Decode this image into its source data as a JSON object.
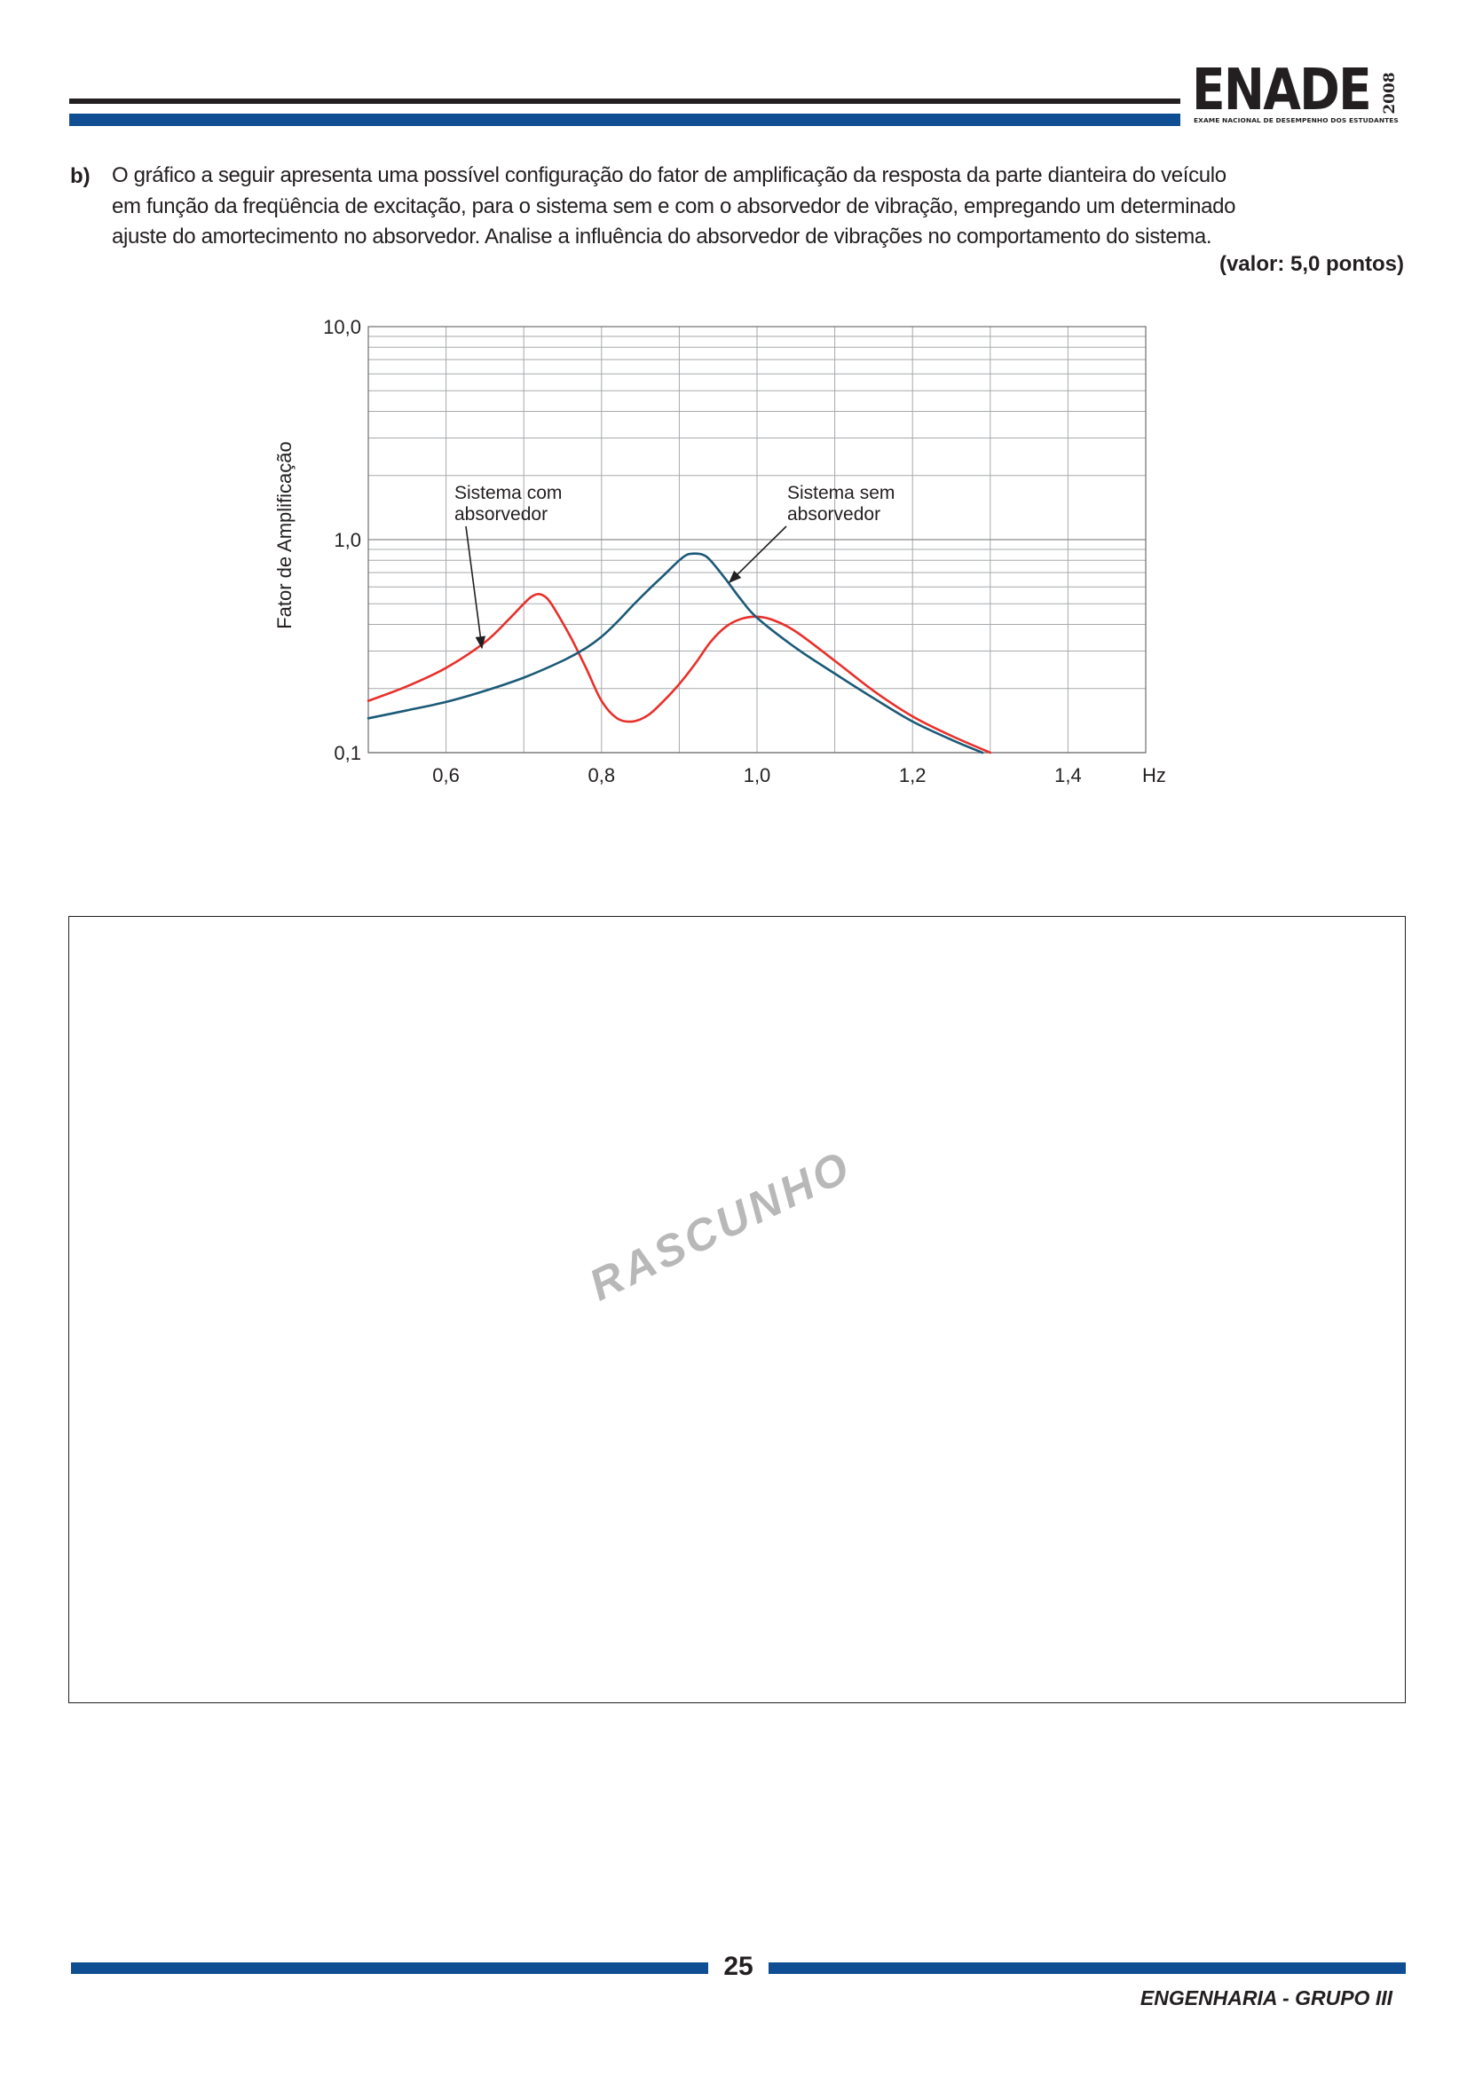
{
  "header": {
    "logo_text": "ENADE",
    "logo_year": "2008",
    "logo_subtitle": "EXAME NACIONAL DE DESEMPENHO DOS ESTUDANTES"
  },
  "question": {
    "marker": "b)",
    "lines": [
      "O gráfico a seguir apresenta uma possível configuração do fator de amplificação da resposta da parte dianteira do veículo",
      "em função da freqüência de excitação, para o sistema sem e com o absorvedor de vibração, empregando um determinado",
      "ajuste do amortecimento no absorvedor. Analise a influência do absorvedor de vibrações no comportamento do sistema."
    ],
    "value": "(valor: 5,0 pontos)"
  },
  "chart_data": {
    "type": "line",
    "title": "",
    "xlabel": "Hz",
    "ylabel": "Fator de Amplificação",
    "x_scale": "linear",
    "y_scale": "log",
    "xlim": [
      0.5,
      1.5
    ],
    "ylim": [
      0.1,
      10.0
    ],
    "grid": true,
    "x_ticks": [
      {
        "value": 0.6,
        "label": "0,6"
      },
      {
        "value": 0.8,
        "label": "0,8"
      },
      {
        "value": 1.0,
        "label": "1,0"
      },
      {
        "value": 1.2,
        "label": "1,2"
      },
      {
        "value": 1.4,
        "label": "1,4"
      }
    ],
    "y_ticks": [
      {
        "value": 0.1,
        "label": "0,1"
      },
      {
        "value": 1.0,
        "label": "1,0"
      },
      {
        "value": 10.0,
        "label": "10,0"
      }
    ],
    "annotations": [
      {
        "lines": [
          "Sistema com",
          "absorvedor"
        ],
        "series": 0
      },
      {
        "lines": [
          "Sistema sem",
          "absorvedor"
        ],
        "series": 1
      }
    ],
    "series": [
      {
        "name": "Sistema com absorvedor",
        "color": "#e8302a",
        "x": [
          0.5,
          0.55,
          0.6,
          0.65,
          0.68,
          0.7,
          0.71,
          0.72,
          0.73,
          0.74,
          0.76,
          0.78,
          0.8,
          0.82,
          0.84,
          0.86,
          0.88,
          0.9,
          0.92,
          0.94,
          0.96,
          0.98,
          1.0,
          1.02,
          1.05,
          1.1,
          1.15,
          1.2,
          1.25,
          1.3
        ],
        "y": [
          0.175,
          0.205,
          0.25,
          0.33,
          0.42,
          0.5,
          0.54,
          0.555,
          0.53,
          0.47,
          0.35,
          0.25,
          0.175,
          0.145,
          0.14,
          0.15,
          0.175,
          0.21,
          0.26,
          0.33,
          0.39,
          0.425,
          0.435,
          0.42,
          0.37,
          0.27,
          0.195,
          0.148,
          0.12,
          0.1
        ]
      },
      {
        "name": "Sistema sem absorvedor",
        "color": "#1b5a78",
        "x": [
          0.5,
          0.55,
          0.6,
          0.65,
          0.7,
          0.75,
          0.78,
          0.8,
          0.82,
          0.84,
          0.86,
          0.88,
          0.9,
          0.91,
          0.92,
          0.93,
          0.94,
          0.96,
          0.98,
          1.0,
          1.05,
          1.1,
          1.15,
          1.2,
          1.25,
          1.29
        ],
        "y": [
          0.145,
          0.158,
          0.173,
          0.195,
          0.225,
          0.27,
          0.31,
          0.35,
          0.41,
          0.49,
          0.58,
          0.68,
          0.8,
          0.85,
          0.86,
          0.85,
          0.8,
          0.65,
          0.52,
          0.43,
          0.31,
          0.235,
          0.18,
          0.14,
          0.115,
          0.1
        ]
      }
    ]
  },
  "watermark": "RASCUNHO",
  "footer": {
    "page_number": "25",
    "title": "ENGENHARIA - GRUPO III"
  }
}
